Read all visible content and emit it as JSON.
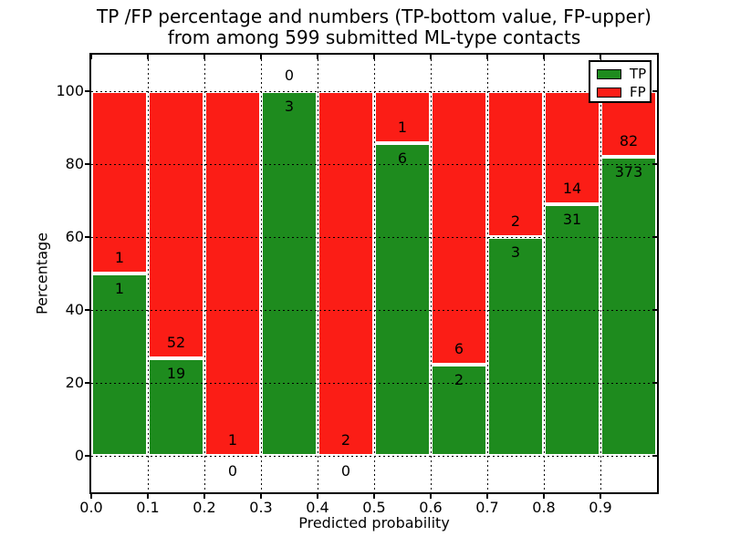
{
  "title": {
    "line1": "TP /FP percentage and numbers (TP-bottom value, FP-upper)",
    "line2": "from among 599 submitted ML-type contacts"
  },
  "chart_data": {
    "type": "bar",
    "stacked": true,
    "normalized_to_percent": true,
    "title": "TP /FP percentage and numbers (TP-bottom value, FP-upper) from among 599 submitted ML-type contacts",
    "xlabel": "Predicted probability",
    "ylabel": "Percentage",
    "total_contacts": 599,
    "bin_width": 0.1,
    "categories": [
      "0.0",
      "0.1",
      "0.2",
      "0.3",
      "0.4",
      "0.5",
      "0.6",
      "0.7",
      "0.8",
      "0.9"
    ],
    "series": [
      {
        "name": "TP",
        "color": "#1e8b1e",
        "values": [
          1,
          19,
          0,
          3,
          0,
          6,
          2,
          3,
          31,
          373
        ]
      },
      {
        "name": "FP",
        "color": "#fb1d16",
        "values": [
          1,
          52,
          1,
          0,
          2,
          1,
          6,
          2,
          14,
          82
        ]
      }
    ],
    "tp_percent": [
      50.0,
      26.8,
      0.0,
      100.0,
      0.0,
      85.7,
      25.0,
      60.0,
      68.9,
      82.0
    ],
    "label_rule": "FP count shown above TP/FP boundary, TP count shown below boundary",
    "xticks": [
      "0.0",
      "0.1",
      "0.2",
      "0.3",
      "0.4",
      "0.5",
      "0.6",
      "0.7",
      "0.8",
      "0.9"
    ],
    "yticks": [
      0,
      20,
      40,
      60,
      80,
      100
    ],
    "xlim": [
      0.0,
      1.0
    ],
    "ylim": [
      -10,
      110
    ],
    "grid": true,
    "grid_style": "dotted black",
    "bar_edge_color": "#ffffff",
    "legend_position": "upper right",
    "legend_items": [
      "TP",
      "FP"
    ],
    "background_color": "#ffffff",
    "text_color": "#000000"
  }
}
